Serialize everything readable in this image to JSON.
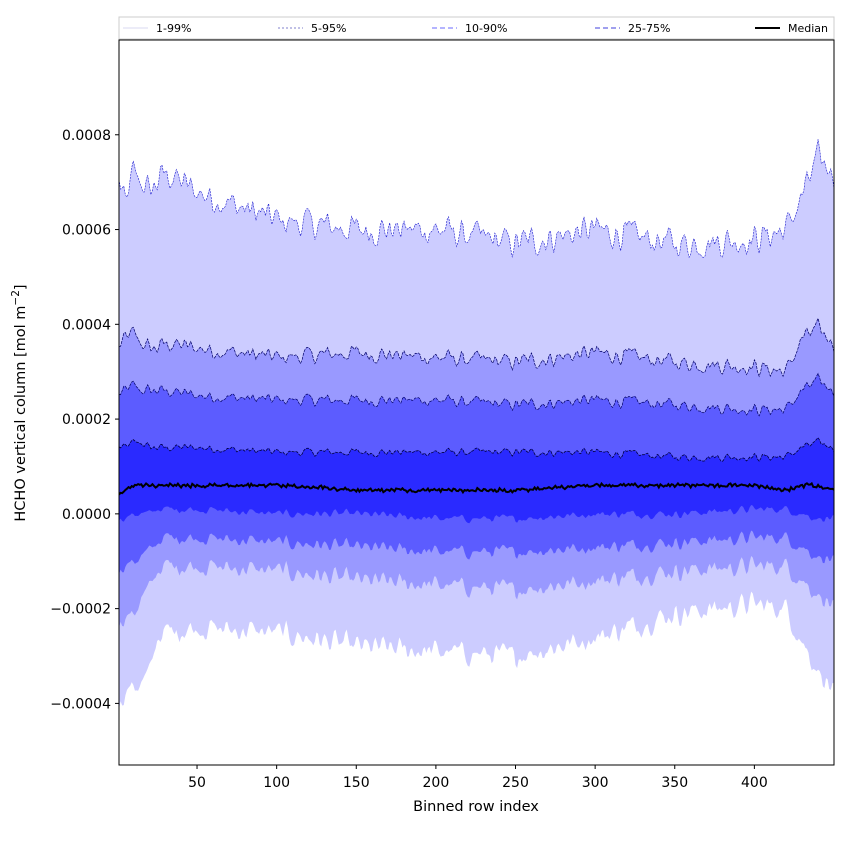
{
  "chart_data": {
    "type": "area",
    "xlabel": "Binned row index",
    "ylabel_main": "HCHO vertical column [mol m",
    "ylabel_sup": "−2",
    "ylabel_close": "]",
    "xlim": [
      1,
      450
    ],
    "ylim": [
      -0.00053,
      0.001
    ],
    "xticks": [
      50,
      100,
      150,
      200,
      250,
      300,
      350,
      400
    ],
    "xtick_labels": [
      "50",
      "100",
      "150",
      "200",
      "250",
      "300",
      "350",
      "400"
    ],
    "yticks": [
      -0.0004,
      -0.0002,
      0.0,
      0.0002,
      0.0004,
      0.0006,
      0.0008
    ],
    "ytick_labels": [
      "−0.0004",
      "−0.0002",
      "0.0000",
      "0.0002",
      "0.0004",
      "0.0006",
      "0.0008"
    ],
    "legend": {
      "placement": "top",
      "entries": [
        {
          "label": "1-99%",
          "color": "#d8d8f2",
          "style": "solid"
        },
        {
          "label": "5-95%",
          "color": "#8080cc",
          "style": "dotted"
        },
        {
          "label": "10-90%",
          "color": "#6a6aff",
          "style": "dashed"
        },
        {
          "label": "25-75%",
          "color": "#4040dd",
          "style": "dashed"
        },
        {
          "label": "Median",
          "color": "#000000",
          "style": "solid"
        }
      ]
    },
    "x_knots": [
      1,
      5,
      10,
      15,
      20,
      25,
      30,
      50,
      100,
      150,
      200,
      250,
      300,
      350,
      400,
      420,
      430,
      440,
      450
    ],
    "series": [
      {
        "name": "1-99%",
        "band": "outer",
        "fill": "#ccccff",
        "upper": [
          0.0007,
          0.00065,
          0.00072,
          0.0007,
          0.00068,
          0.0007,
          0.00072,
          0.00068,
          0.00062,
          0.0006,
          0.0006,
          0.00057,
          0.0006,
          0.00057,
          0.00058,
          0.0006,
          0.00067,
          0.00075,
          0.00072
        ],
        "lower": [
          -0.0004,
          -0.00038,
          -0.00036,
          -0.00036,
          -0.00034,
          -0.00026,
          -0.00025,
          -0.00024,
          -0.00025,
          -0.00028,
          -0.00029,
          -0.0003,
          -0.00026,
          -0.00021,
          -0.00019,
          -0.0002,
          -0.00027,
          -0.00033,
          -0.00038
        ]
      },
      {
        "name": "5-95%",
        "band": "second",
        "fill": "#9999ff",
        "upper": [
          0.00035,
          0.00037,
          0.00038,
          0.00036,
          0.00035,
          0.00035,
          0.00036,
          0.00035,
          0.00033,
          0.00034,
          0.00033,
          0.00032,
          0.00034,
          0.00032,
          0.00031,
          0.0003,
          0.00037,
          0.00039,
          0.00036
        ],
        "lower": [
          -0.00023,
          -0.00022,
          -0.00021,
          -0.00018,
          -0.00016,
          -0.00012,
          -0.00011,
          -0.00011,
          -0.00012,
          -0.00014,
          -0.00015,
          -0.00016,
          -0.00014,
          -0.00012,
          -0.00011,
          -0.00011,
          -0.00014,
          -0.00017,
          -0.0002
        ]
      },
      {
        "name": "10-90%",
        "band": "third",
        "fill": "#5c5cff",
        "upper": [
          0.00025,
          0.00026,
          0.00027,
          0.00026,
          0.00026,
          0.00026,
          0.00026,
          0.00025,
          0.00024,
          0.00024,
          0.00024,
          0.00023,
          0.00024,
          0.00023,
          0.00022,
          0.00022,
          0.00026,
          0.00028,
          0.00026
        ],
        "lower": [
          -0.00012,
          -0.00011,
          -0.0001,
          -9e-05,
          -8e-05,
          -6e-05,
          -5e-05,
          -5e-05,
          -6e-05,
          -7e-05,
          -8e-05,
          -8e-05,
          -7e-05,
          -6e-05,
          -5e-05,
          -5e-05,
          -7e-05,
          -9e-05,
          -0.0001
        ]
      },
      {
        "name": "25-75%",
        "band": "inner",
        "fill": "#2a2aff",
        "upper": [
          0.00014,
          0.00014,
          0.00015,
          0.00015,
          0.00014,
          0.00014,
          0.00014,
          0.00014,
          0.00013,
          0.00013,
          0.00013,
          0.00013,
          0.00013,
          0.00012,
          0.00012,
          0.00012,
          0.00014,
          0.00015,
          0.00014
        ],
        "lower": [
          -1e-05,
          -1e-05,
          0.0,
          0.0,
          0.0,
          1e-05,
          1e-05,
          1e-05,
          0.0,
          0.0,
          -1e-05,
          -1e-05,
          0.0,
          0.0,
          1e-05,
          1e-05,
          0.0,
          -1e-05,
          -1e-05
        ]
      },
      {
        "name": "Median",
        "band": "line",
        "color": "#000000",
        "values": [
          4e-05,
          5e-05,
          6e-05,
          6e-05,
          6e-05,
          6e-05,
          6e-05,
          6e-05,
          6e-05,
          5e-05,
          5e-05,
          5e-05,
          6e-05,
          6e-05,
          6e-05,
          5e-05,
          6e-05,
          6e-05,
          5e-05
        ]
      }
    ]
  }
}
